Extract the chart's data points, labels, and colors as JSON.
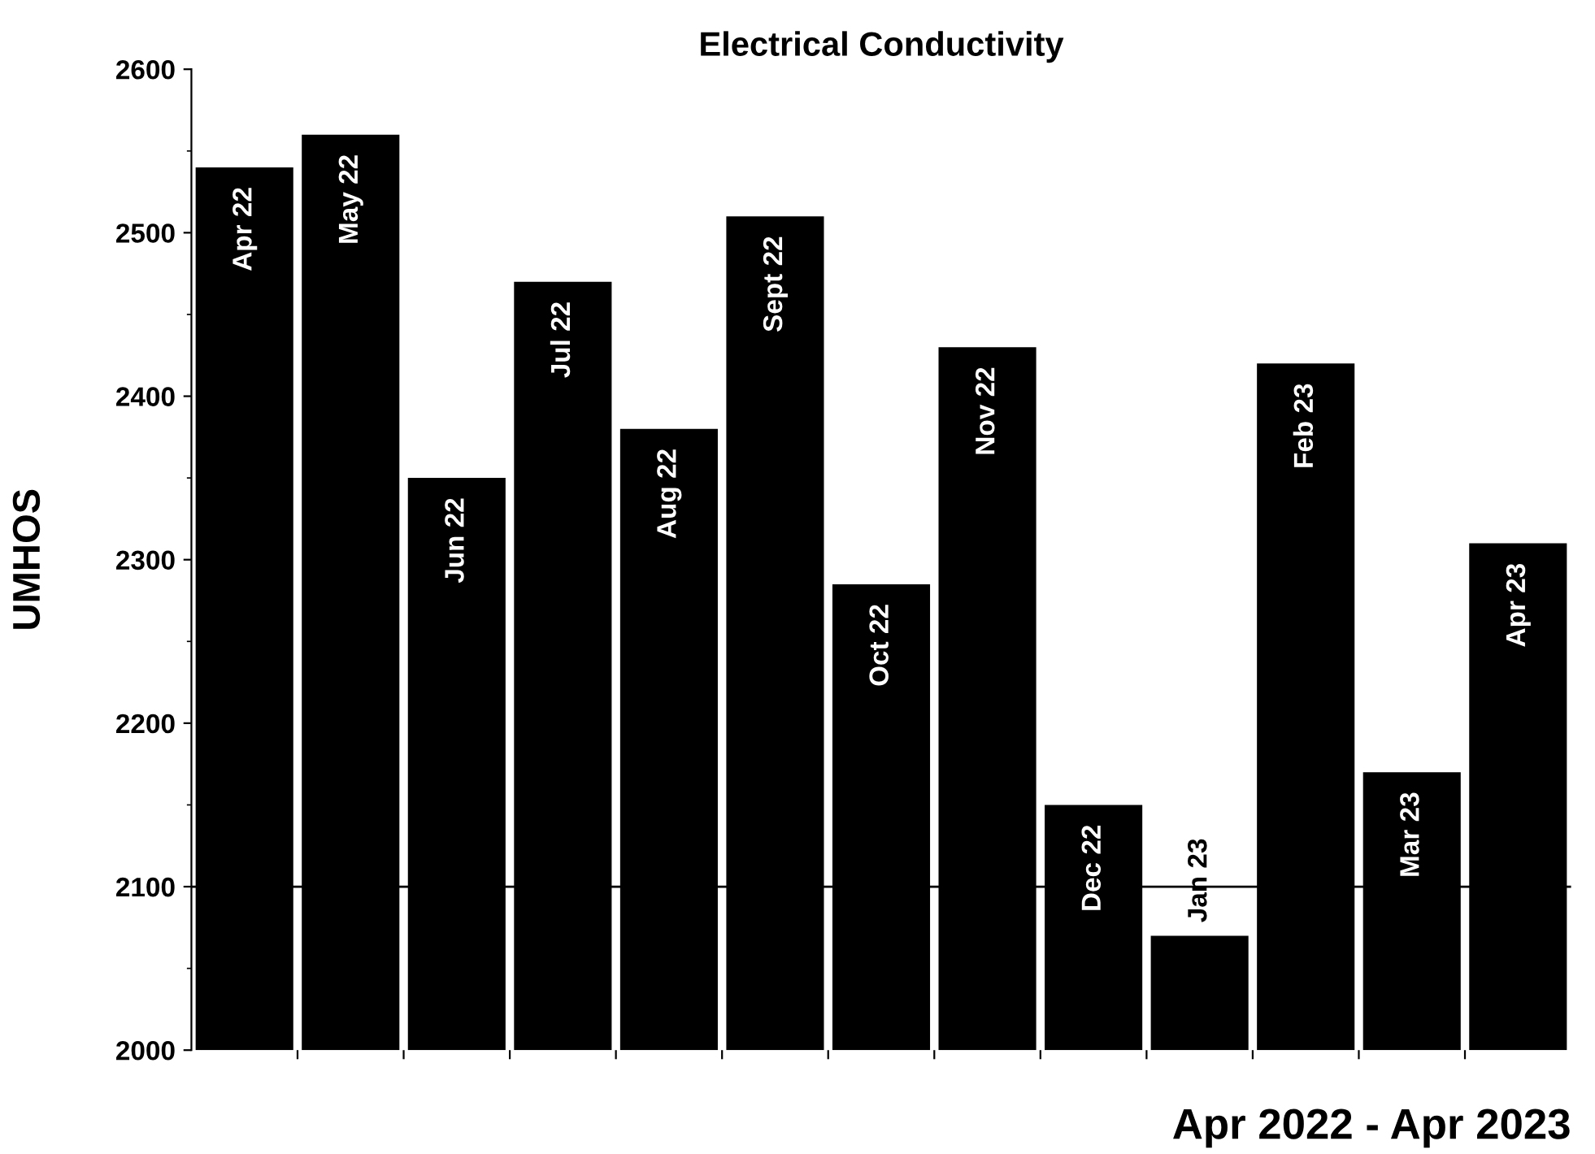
{
  "chart_data": {
    "type": "bar",
    "title": "Electrical Conductivity",
    "xlabel": "Apr 2022 - Apr 2023",
    "ylabel": "UMHOS",
    "categories": [
      "Apr 22",
      "May 22",
      "Jun 22",
      "Jul 22",
      "Aug 22",
      "Sept 22",
      "Oct 22",
      "Nov 22",
      "Dec 22",
      "Jan 23",
      "Feb 23",
      "Mar 23",
      "Apr 23"
    ],
    "values": [
      2540,
      2560,
      2350,
      2470,
      2380,
      2510,
      2285,
      2430,
      2150,
      2070,
      2420,
      2170,
      2310
    ],
    "color": "#000000",
    "ylim": [
      2000,
      2600
    ],
    "yticks": [
      2000,
      2100,
      2200,
      2300,
      2400,
      2500,
      2600
    ],
    "ref_lines": [
      {
        "axis": "y",
        "value": 2100,
        "color": "#000000"
      }
    ],
    "grid": false,
    "legend": false
  }
}
